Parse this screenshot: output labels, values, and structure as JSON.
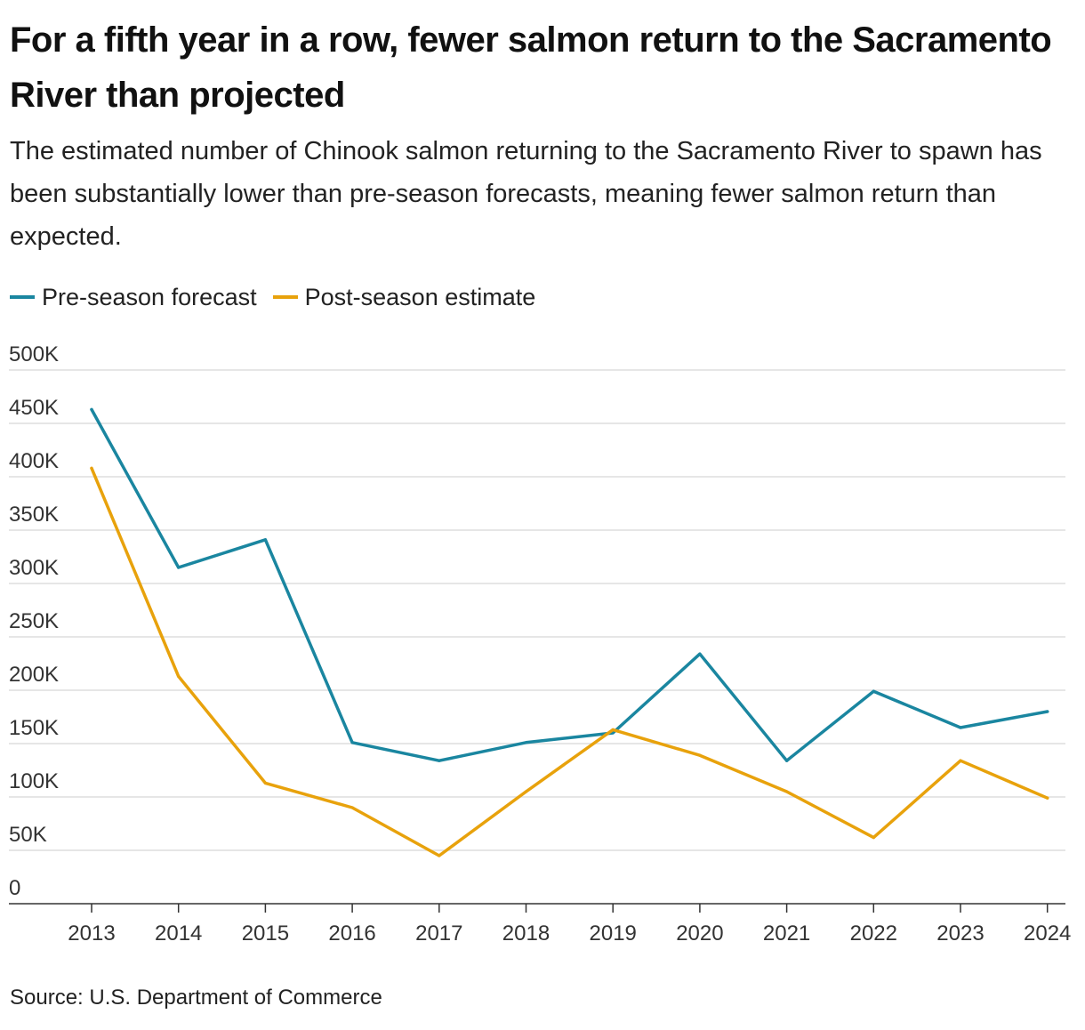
{
  "title": "For a fifth year in a row, fewer salmon return to the Sacramento River than projected",
  "subtitle": "The estimated number of Chinook salmon returning to the Sacramento River to spawn has been substantially lower than pre-season forecasts, meaning fewer salmon return than expected.",
  "source": "Source: U.S. Department of Commerce",
  "colors": {
    "forecast": "#1a86a0",
    "estimate": "#e8a20c",
    "grid": "#dddddd",
    "axis": "#333333"
  },
  "chart_data": {
    "type": "line",
    "title": "For a fifth year in a row, fewer salmon return to the Sacramento River than projected",
    "xlabel": "",
    "ylabel": "",
    "x": [
      "2013",
      "2014",
      "2015",
      "2016",
      "2017",
      "2018",
      "2019",
      "2020",
      "2021",
      "2022",
      "2023",
      "2024"
    ],
    "ylim": [
      0,
      500000
    ],
    "yticks": [
      0,
      50000,
      100000,
      150000,
      200000,
      250000,
      300000,
      350000,
      400000,
      450000,
      500000
    ],
    "ytick_labels": [
      "0",
      "50K",
      "100K",
      "150K",
      "200K",
      "250K",
      "300K",
      "350K",
      "400K",
      "450K",
      "500K"
    ],
    "grid": true,
    "legend_position": "top-left",
    "series": [
      {
        "name": "Pre-season forecast",
        "color": "#1a86a0",
        "values": [
          463000,
          315000,
          341000,
          151000,
          134000,
          151000,
          160000,
          234000,
          134000,
          199000,
          165000,
          180000
        ]
      },
      {
        "name": "Post-season estimate",
        "color": "#e8a20c",
        "values": [
          408000,
          213000,
          113000,
          90000,
          45000,
          105000,
          163000,
          139000,
          105000,
          62000,
          134000,
          99000
        ]
      }
    ]
  }
}
